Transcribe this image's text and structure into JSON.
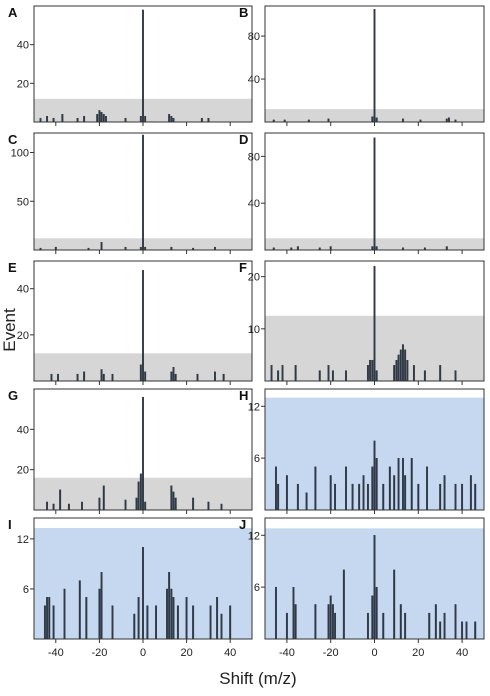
{
  "figure": {
    "ylabel": "Event",
    "xlabel": "Shift (m/z)",
    "x_tick_labels": [
      "-40",
      "-20",
      "0",
      "20",
      "40"
    ]
  },
  "chart_data": [
    {
      "type": "bar",
      "panel": "A",
      "xlim": [
        -50,
        50
      ],
      "ylim": [
        0,
        60
      ],
      "yticks": [
        20,
        40
      ],
      "y_tick_labels": [
        "20",
        "40"
      ],
      "threshold": 12,
      "threshold_color": "#d6d6d6",
      "x": [
        -47,
        -44,
        -41,
        -37,
        -30,
        -27,
        -21,
        -20,
        -19,
        -18,
        -17,
        -8,
        -1,
        0,
        1,
        12,
        13,
        14,
        27,
        30
      ],
      "values": [
        2,
        3,
        2,
        4,
        2,
        3,
        4,
        6,
        5,
        4,
        3,
        2,
        3,
        58,
        3,
        4,
        3,
        2,
        2,
        2
      ]
    },
    {
      "type": "bar",
      "panel": "B",
      "xlim": [
        -50,
        50
      ],
      "ylim": [
        0,
        108
      ],
      "yticks": [
        40,
        80
      ],
      "y_tick_labels": [
        "40",
        "80"
      ],
      "threshold": 12,
      "threshold_color": "#d6d6d6",
      "x": [
        -46,
        -41,
        -30,
        -21,
        -1,
        0,
        1,
        13,
        21,
        33,
        34,
        37
      ],
      "values": [
        2,
        2,
        2,
        3,
        5,
        105,
        4,
        3,
        2,
        3,
        4,
        2
      ]
    },
    {
      "type": "bar",
      "panel": "C",
      "xlim": [
        -50,
        50
      ],
      "ylim": [
        0,
        120
      ],
      "yticks": [
        50,
        100
      ],
      "y_tick_labels": [
        "50",
        "100"
      ],
      "threshold": 12,
      "threshold_color": "#d6d6d6",
      "x": [
        -47,
        -40,
        -25,
        -19,
        -8,
        -1,
        0,
        1,
        13,
        23,
        33
      ],
      "values": [
        2,
        3,
        2,
        8,
        3,
        3,
        118,
        3,
        3,
        2,
        3
      ]
    },
    {
      "type": "bar",
      "panel": "D",
      "xlim": [
        -50,
        50
      ],
      "ylim": [
        0,
        100
      ],
      "yticks": [
        40,
        80
      ],
      "y_tick_labels": [
        "40",
        "80"
      ],
      "threshold": 10,
      "threshold_color": "#d6d6d6",
      "x": [
        -46,
        -38,
        -35,
        -25,
        -20,
        -1,
        0,
        1,
        13,
        23,
        33
      ],
      "values": [
        2,
        2,
        3,
        2,
        3,
        3,
        96,
        3,
        2,
        2,
        3
      ]
    },
    {
      "type": "bar",
      "panel": "E",
      "xlim": [
        -50,
        50
      ],
      "ylim": [
        0,
        52
      ],
      "yticks": [
        20,
        40
      ],
      "y_tick_labels": [
        "20",
        "40"
      ],
      "threshold": 12,
      "threshold_color": "#d6d6d6",
      "x": [
        -42,
        -39,
        -30,
        -27,
        -19,
        -18,
        -14,
        -1,
        0,
        1,
        13,
        14,
        15,
        25,
        33,
        37
      ],
      "values": [
        3,
        3,
        3,
        4,
        5,
        3,
        3,
        7,
        48,
        4,
        4,
        6,
        3,
        3,
        4,
        3
      ]
    },
    {
      "type": "bar",
      "panel": "F",
      "xlim": [
        -50,
        50
      ],
      "ylim": [
        0,
        23
      ],
      "yticks": [
        10,
        20
      ],
      "y_tick_labels": [
        "10",
        "20"
      ],
      "threshold": 12.5,
      "threshold_color": "#d6d6d6",
      "x": [
        -47,
        -44,
        -42,
        -36,
        -25,
        -21,
        -19,
        -13,
        -3,
        -2,
        -1,
        0,
        1,
        9,
        10,
        11,
        12,
        13,
        14,
        15,
        18,
        23,
        30,
        37
      ],
      "values": [
        3,
        2,
        3,
        3,
        2,
        3,
        2,
        2,
        3,
        4,
        4,
        22,
        2,
        3,
        4,
        5,
        6,
        7,
        6,
        4,
        3,
        2,
        3,
        2
      ]
    },
    {
      "type": "bar",
      "panel": "G",
      "xlim": [
        -50,
        50
      ],
      "ylim": [
        0,
        60
      ],
      "yticks": [
        20,
        40
      ],
      "y_tick_labels": [
        "20",
        "40"
      ],
      "threshold": 16,
      "threshold_color": "#d6d6d6",
      "x": [
        -44,
        -41,
        -38,
        -34,
        -28,
        -20,
        -18,
        -8,
        -3,
        -2,
        -1,
        0,
        1,
        13,
        14,
        15,
        23,
        30,
        36
      ],
      "values": [
        4,
        3,
        10,
        3,
        4,
        6,
        12,
        5,
        6,
        14,
        18,
        56,
        4,
        12,
        9,
        6,
        6,
        4,
        3
      ]
    },
    {
      "type": "bar",
      "panel": "H",
      "xlim": [
        -50,
        50
      ],
      "ylim": [
        0,
        14
      ],
      "yticks": [
        6,
        12
      ],
      "y_tick_labels": [
        "6",
        "12"
      ],
      "threshold": 13,
      "threshold_color": "#c6d8ef",
      "x": [
        -45,
        -44,
        -40,
        -35,
        -31,
        -27,
        -20,
        -18,
        -13,
        -10,
        -7,
        -5,
        -3,
        -1,
        0,
        1,
        4,
        7,
        9,
        11,
        13,
        14,
        17,
        20,
        24,
        30,
        32,
        37,
        40,
        44,
        46
      ],
      "values": [
        5,
        3,
        4,
        3,
        2,
        5,
        4,
        3,
        5,
        3,
        3,
        4,
        3,
        5,
        8,
        6,
        3,
        5,
        4,
        6,
        6,
        4,
        6,
        3,
        5,
        3,
        4,
        3,
        3,
        4,
        3
      ]
    },
    {
      "type": "bar",
      "panel": "I",
      "xlim": [
        -50,
        50
      ],
      "ylim": [
        0,
        14.5
      ],
      "yticks": [
        6,
        12
      ],
      "y_tick_labels": [
        "6",
        "12"
      ],
      "threshold": 13.3,
      "threshold_color": "#c6d8ef",
      "x": [
        -45,
        -44,
        -43,
        -41,
        -36,
        -29,
        -26,
        -20,
        -19,
        -14,
        -4,
        -2,
        0,
        2,
        6,
        11,
        12,
        13,
        14,
        16,
        20,
        23,
        31,
        34,
        36,
        40
      ],
      "values": [
        4,
        5,
        5,
        4,
        6,
        7,
        5,
        6,
        8,
        4,
        3,
        5,
        11,
        4,
        4,
        6,
        8,
        6,
        5,
        4,
        5,
        4,
        4,
        5,
        3,
        4
      ]
    },
    {
      "type": "bar",
      "panel": "J",
      "xlim": [
        -50,
        50
      ],
      "ylim": [
        0,
        14
      ],
      "yticks": [
        6,
        12
      ],
      "y_tick_labels": [
        "6",
        "12"
      ],
      "threshold": 12.8,
      "threshold_color": "#c6d8ef",
      "x": [
        -45,
        -40,
        -37,
        -36,
        -27,
        -21,
        -20,
        -19,
        -18,
        -14,
        -3,
        -1,
        0,
        1,
        4,
        9,
        12,
        14,
        25,
        28,
        30,
        32,
        37,
        40,
        42,
        46
      ],
      "values": [
        6,
        3,
        6,
        4,
        4,
        4,
        5,
        4,
        3,
        8,
        3,
        5,
        12,
        6,
        3,
        8,
        4,
        3,
        3,
        4,
        2,
        3,
        4,
        2,
        2,
        2
      ]
    }
  ]
}
